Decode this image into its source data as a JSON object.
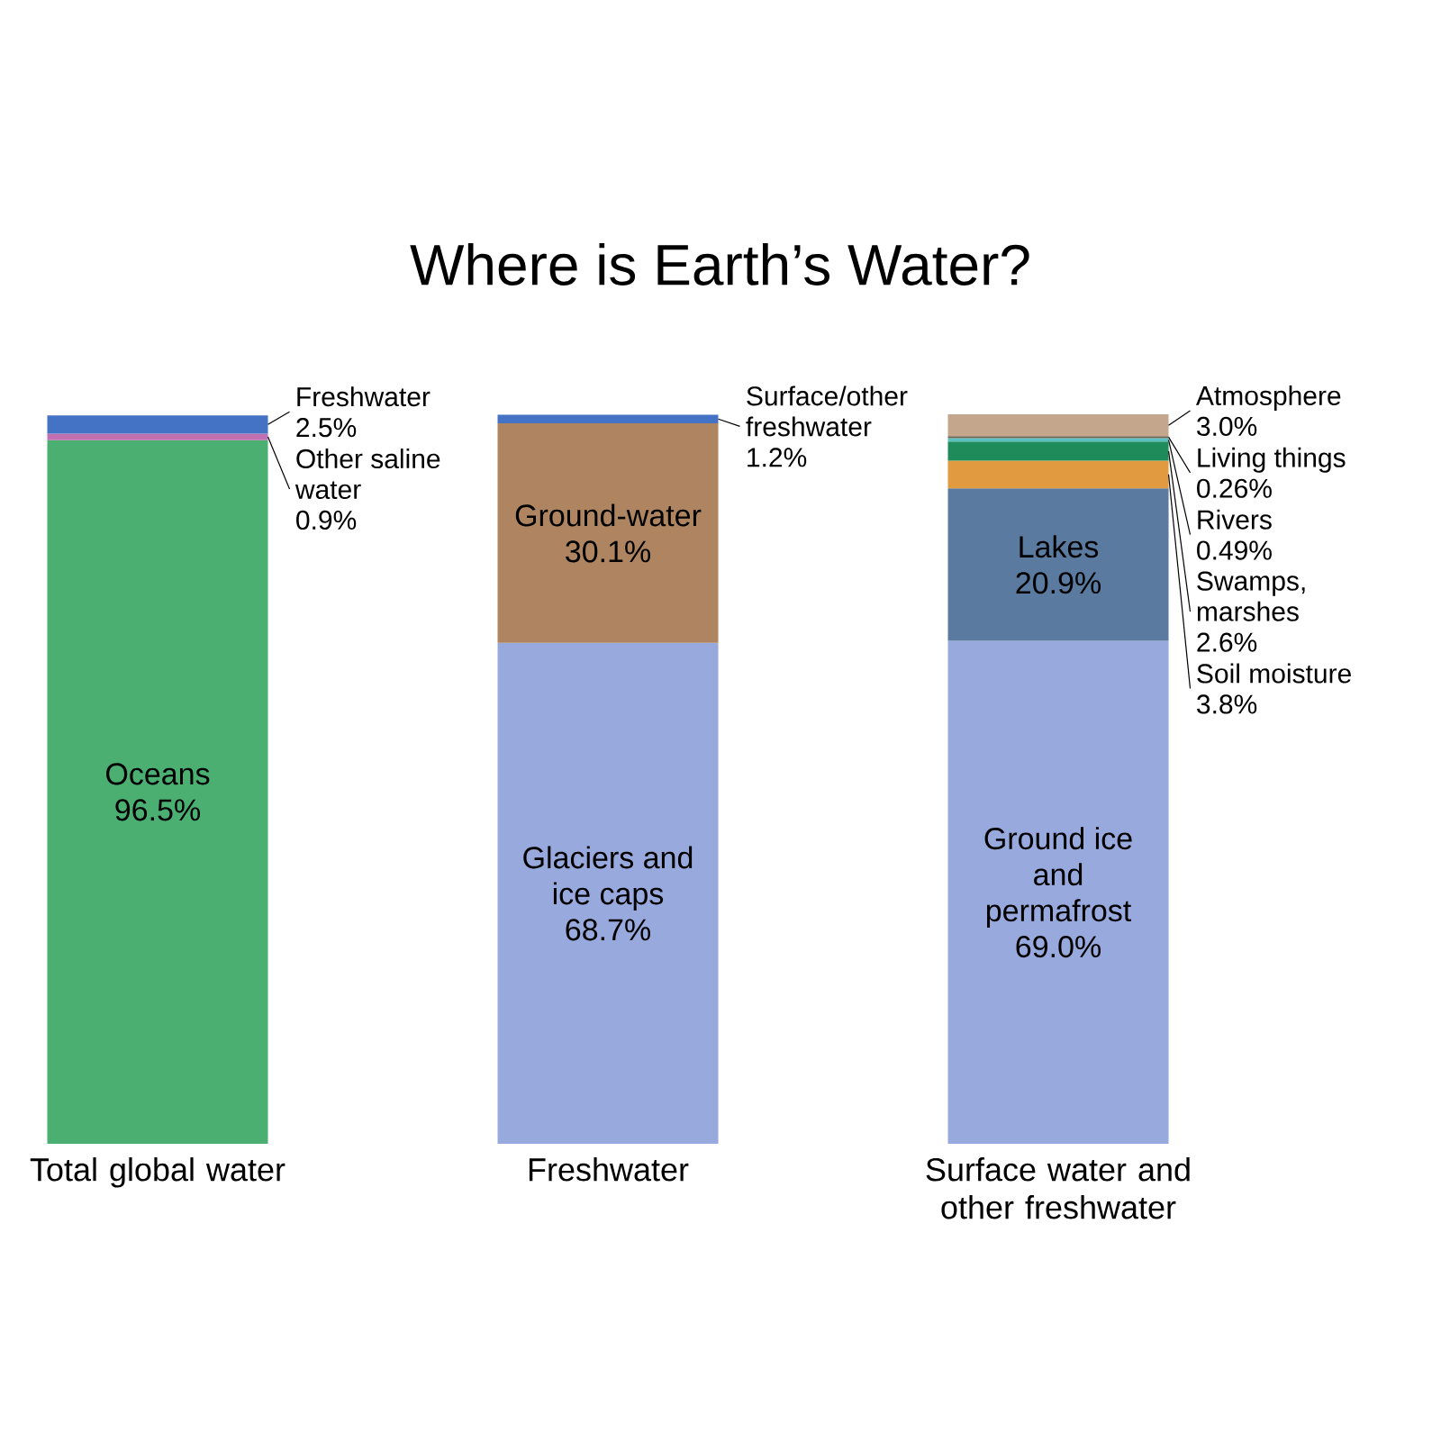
{
  "chart_data": {
    "type": "bar",
    "stacked": true,
    "title": "Where is Earth’s Water?",
    "categories": [
      "Total global water",
      "Freshwater",
      "Surface water and other freshwater"
    ],
    "series": [
      {
        "name": "Oceans",
        "color": "#4caf72",
        "values": [
          96.5,
          null,
          null
        ],
        "value_labels": [
          "96.5%",
          null,
          null
        ]
      },
      {
        "name": "Other saline water",
        "color": "#c06fb0",
        "values": [
          0.9,
          null,
          null
        ],
        "value_labels": [
          "0.9%",
          null,
          null
        ]
      },
      {
        "name": "Freshwater",
        "color": "#4472c4",
        "values": [
          2.5,
          null,
          null
        ],
        "value_labels": [
          "2.5%",
          null,
          null
        ]
      },
      {
        "name": "Glaciers and ice caps",
        "color": "#98a9dd",
        "values": [
          null,
          68.7,
          null
        ],
        "value_labels": [
          null,
          "68.7%",
          null
        ]
      },
      {
        "name": "Ground-water",
        "color": "#ae8560",
        "values": [
          null,
          30.1,
          null
        ],
        "value_labels": [
          null,
          "30.1%",
          null
        ]
      },
      {
        "name": "Surface/other freshwater",
        "color": "#4472c4",
        "values": [
          null,
          1.2,
          null
        ],
        "value_labels": [
          null,
          "1.2%",
          null
        ]
      },
      {
        "name": "Ground ice and permafrost",
        "color": "#98a9dd",
        "values": [
          null,
          null,
          69.0
        ],
        "value_labels": [
          null,
          null,
          "69.0%"
        ]
      },
      {
        "name": "Lakes",
        "color": "#5a7aa0",
        "values": [
          null,
          null,
          20.9
        ],
        "value_labels": [
          null,
          null,
          "20.9%"
        ]
      },
      {
        "name": "Soil moisture",
        "color": "#e29a40",
        "values": [
          null,
          null,
          3.8
        ],
        "value_labels": [
          null,
          null,
          "3.8%"
        ]
      },
      {
        "name": "Swamps, marshes",
        "color": "#1f8a5a",
        "values": [
          null,
          null,
          2.6
        ],
        "value_labels": [
          null,
          null,
          "2.6%"
        ]
      },
      {
        "name": "Rivers",
        "color": "#5ac0c0",
        "values": [
          null,
          null,
          0.49
        ],
        "value_labels": [
          null,
          null,
          "0.49%"
        ]
      },
      {
        "name": "Living things",
        "color": "#6f6355",
        "values": [
          null,
          null,
          0.26
        ],
        "value_labels": [
          null,
          null,
          "0.26%"
        ]
      },
      {
        "name": "Atmosphere",
        "color": "#c4a68c",
        "values": [
          null,
          null,
          3.0
        ],
        "value_labels": [
          null,
          null,
          "3.0%"
        ]
      }
    ]
  }
}
